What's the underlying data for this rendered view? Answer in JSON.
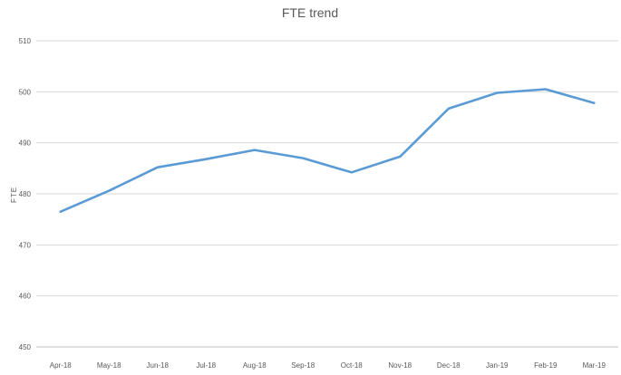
{
  "chart_data": {
    "type": "line",
    "title": "FTE trend",
    "xlabel": "",
    "ylabel": "FTE",
    "categories": [
      "Apr-18",
      "May-18",
      "Jun-18",
      "Jul-18",
      "Aug-18",
      "Sep-18",
      "Oct-18",
      "Nov-18",
      "Dec-18",
      "Jan-19",
      "Feb-19",
      "Mar-19"
    ],
    "series": [
      {
        "values": [
          476.5,
          480.6,
          485.2,
          486.8,
          488.6,
          487.0,
          484.2,
          487.3,
          496.7,
          499.8,
          500.5,
          497.8
        ]
      }
    ],
    "ylim": [
      450,
      510
    ],
    "yticks": [
      450,
      460,
      470,
      480,
      490,
      500,
      510
    ],
    "grid": true,
    "legend": "none",
    "colors": {
      "line": "#5b9bd5"
    }
  }
}
